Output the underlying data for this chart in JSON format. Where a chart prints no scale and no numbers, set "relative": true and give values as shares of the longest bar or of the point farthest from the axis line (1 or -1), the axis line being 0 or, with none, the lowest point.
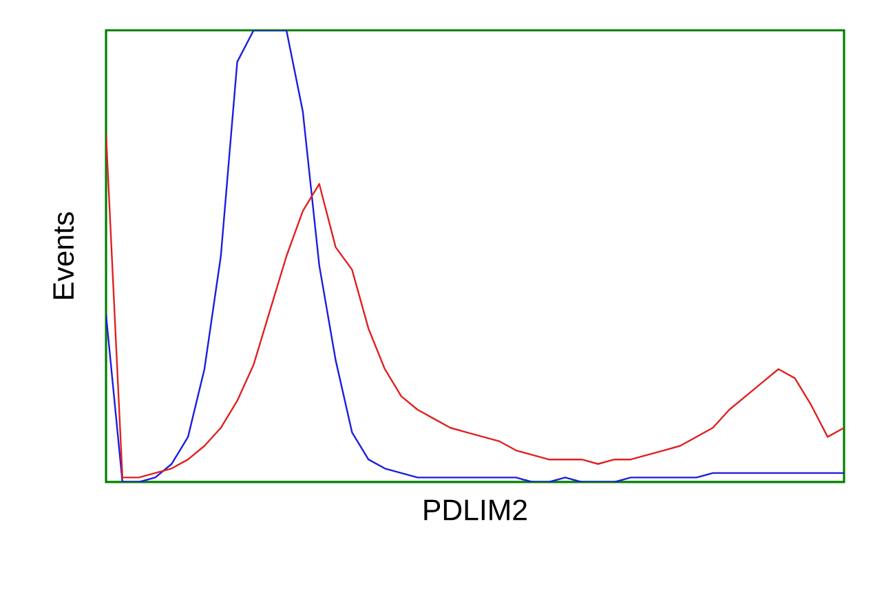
{
  "chart_data": {
    "type": "line",
    "relative": true,
    "tick_labels": false,
    "xlabel": "PDLIM2",
    "ylabel": "Events",
    "categories": [
      null,
      null,
      null,
      null,
      null,
      null,
      null,
      null,
      null,
      null,
      null,
      null,
      null,
      null,
      null,
      null,
      null,
      null,
      null,
      null,
      null,
      null,
      null,
      null,
      null,
      null,
      null,
      null,
      null,
      null,
      null,
      null,
      null,
      null,
      null,
      null,
      null,
      null,
      null,
      null,
      null,
      null,
      null,
      null,
      null,
      null
    ],
    "series": [
      {
        "color": "#1c1ce0",
        "values": [
          0.37,
          0,
          0,
          0.01,
          0.04,
          0.1,
          0.25,
          0.5,
          0.93,
          1,
          1,
          1,
          0.82,
          0.48,
          0.27,
          0.11,
          0.05,
          0.03,
          0.02,
          0.01,
          0.01,
          0.01,
          0.01,
          0.01,
          0.01,
          0.01,
          0,
          0,
          0.01,
          0,
          0,
          0,
          0.01,
          0.01,
          0.01,
          0.01,
          0.01,
          0.02,
          0.02,
          0.02,
          0.02,
          0.02,
          0.02,
          0.02,
          0.02,
          0.02
        ]
      },
      {
        "color": "#e02020",
        "values": [
          0.77,
          0.01,
          0.01,
          0.02,
          0.03,
          0.05,
          0.08,
          0.12,
          0.18,
          0.26,
          0.38,
          0.5,
          0.6,
          0.66,
          0.52,
          0.47,
          0.34,
          0.25,
          0.19,
          0.16,
          0.14,
          0.12,
          0.11,
          0.1,
          0.09,
          0.07,
          0.06,
          0.05,
          0.05,
          0.05,
          0.04,
          0.05,
          0.05,
          0.06,
          0.07,
          0.08,
          0.1,
          0.12,
          0.16,
          0.19,
          0.22,
          0.25,
          0.23,
          0.17,
          0.1,
          0.12
        ]
      }
    ]
  }
}
